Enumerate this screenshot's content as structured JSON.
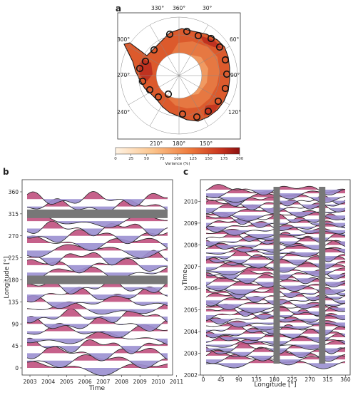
{
  "panels": {
    "a": {
      "letter": "a",
      "lon_labels": [
        "330°",
        "360°",
        "30°",
        "300°",
        "60°",
        "270°",
        "90°",
        "240°",
        "120°",
        "210°",
        "180°",
        "150°"
      ],
      "colorbar": {
        "label": "Variance (%)",
        "ticks": [
          "0",
          "25",
          "50",
          "75",
          "100",
          "125",
          "150",
          "175",
          "200"
        ]
      },
      "colors": {
        "low": "#fff0e0",
        "mid": "#f08040",
        "high": "#b01818"
      }
    },
    "b": {
      "letter": "b",
      "xlabel": "Time",
      "ylabel": "Longitude [°]",
      "xticks": [
        "2003",
        "2004",
        "2005",
        "2006",
        "2007",
        "2008",
        "2009",
        "2010",
        "2011"
      ],
      "yticks": [
        "0",
        "45",
        "90",
        "135",
        "180",
        "225",
        "270",
        "315",
        "360"
      ]
    },
    "c": {
      "letter": "c",
      "xlabel": "Longitude [°]",
      "ylabel": "Time",
      "xticks": [
        "0",
        "45",
        "90",
        "135",
        "180",
        "225",
        "270",
        "315",
        "360"
      ],
      "yticks": [
        "2002",
        "2003",
        "2004",
        "2005",
        "2006",
        "2007",
        "2008",
        "2009",
        "2010"
      ]
    }
  },
  "chart_data": [
    {
      "type": "area",
      "panel": "b",
      "xlabel": "Time",
      "ylabel": "Longitude [°]",
      "xlim": [
        2002.7,
        2011
      ],
      "ylim": [
        -10,
        370
      ],
      "gray_bands_longitude": [
        315,
        180
      ],
      "positive_color": "#c0507e",
      "negative_color": "#9a8fd0"
    },
    {
      "type": "area",
      "panel": "c",
      "xlabel": "Longitude [°]",
      "ylabel": "Time",
      "xlim": [
        0,
        370
      ],
      "ylim": [
        2002,
        2011
      ],
      "gray_bands_longitude": [
        185,
        300
      ],
      "positive_color": "#c0507e",
      "negative_color": "#9a8fd0"
    }
  ]
}
